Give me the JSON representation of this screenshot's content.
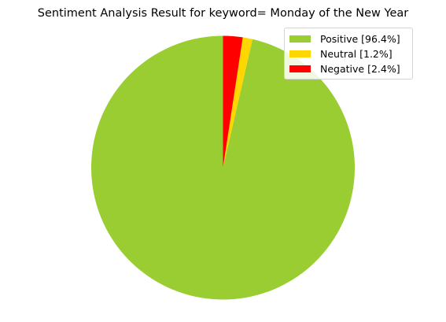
{
  "chart_data": {
    "type": "pie",
    "title": "Sentiment Analysis Result for keyword=  Monday of the New Year",
    "slices": [
      {
        "label": "Positive [96.4%]",
        "value": 96.4,
        "color": "#9acd32"
      },
      {
        "label": "Neutral [1.2%]",
        "value": 1.2,
        "color": "#ffd700"
      },
      {
        "label": "Negative [2.4%]",
        "value": 2.4,
        "color": "#ff0000"
      }
    ],
    "start_angle_deg": 90,
    "direction": "counterclockwise",
    "legend_placement": "upper-right"
  }
}
